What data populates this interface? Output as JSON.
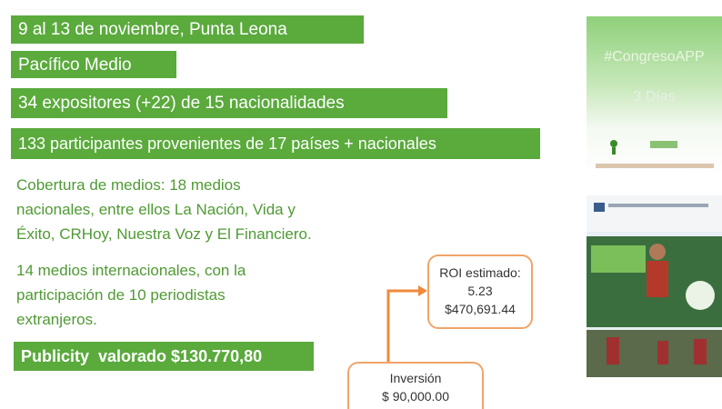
{
  "banners": [
    "9 al 13 de noviembre, Punta Leona",
    "Pacífico Medio",
    "34 expositores (+22) de 15 nacionalidades",
    "133 participantes provenientes de 17 países + nacionales"
  ],
  "coverage": [
    "Cobertura de medios: 18 medios",
    "nacionales, entre ellos La Nación, Vida y",
    "Éxito, CRHoy, Nuestra Voz y El Financiero."
  ],
  "international": [
    "14 medios internacionales, con la",
    "participación de 10 periodistas",
    "extranjeros."
  ],
  "publicity": "Publicity  valorado $130.770,80",
  "roi": [
    "ROI estimado:",
    "5.23",
    "$470,691.44"
  ],
  "investment": [
    "Inversión",
    "$ 90,000.00"
  ],
  "image_top": [
    "#CongresoAPP",
    "3 Días"
  ]
}
